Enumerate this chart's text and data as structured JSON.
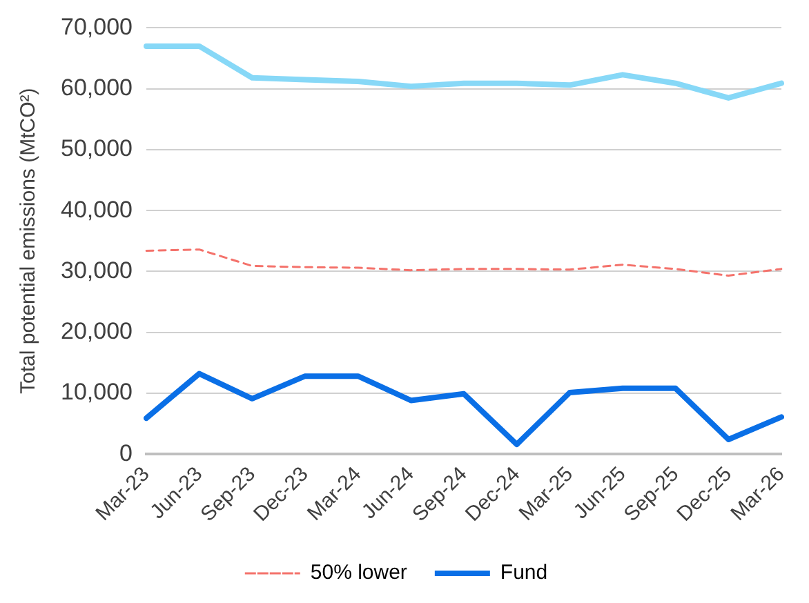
{
  "chart_data": {
    "type": "line",
    "ylabel": "Total potential emissions (MtCO²)",
    "categories": [
      "Mar-23",
      "Jun-23",
      "Sep-23",
      "Dec-23",
      "Mar-24",
      "Jun-24",
      "Sep-24",
      "Dec-24",
      "Mar-25",
      "Jun-25",
      "Sep-25",
      "Dec-25",
      "Mar-26"
    ],
    "series": [
      {
        "color": "#87d8f7",
        "values": [
          67000,
          67000,
          61800,
          61500,
          61200,
          60400,
          60900,
          60900,
          60600,
          62300,
          60900,
          58500,
          60900
        ]
      },
      {
        "name": "50% lower",
        "color": "#f4726b",
        "line_style": "dashed",
        "values": [
          33400,
          33600,
          30900,
          30700,
          30600,
          30200,
          30400,
          30400,
          30300,
          31100,
          30400,
          29300,
          30400
        ]
      },
      {
        "name": "Fund",
        "color": "#0a6fe6",
        "values": [
          5900,
          13200,
          9100,
          12800,
          12800,
          8800,
          9900,
          1600,
          10100,
          10800,
          10800,
          2400,
          6100
        ]
      }
    ],
    "ylim": [
      0,
      70000
    ],
    "yticks": [
      0,
      {
        "value": 10000,
        "label": "10,000"
      },
      {
        "value": 20000,
        "label": "20,000"
      },
      {
        "value": 30000,
        "label": "30,000"
      },
      {
        "value": 40000,
        "label": "40,000"
      },
      {
        "value": 50000,
        "label": "50,000"
      },
      {
        "value": 60000,
        "label": "60,000"
      },
      {
        "value": 70000,
        "label": "70,000"
      }
    ],
    "grid": "y",
    "legend": "bottom",
    "marker": "none"
  }
}
